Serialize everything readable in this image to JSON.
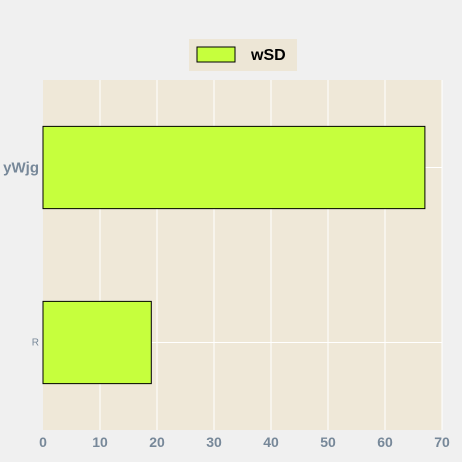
{
  "chart_data": {
    "type": "bar",
    "orientation": "horizontal",
    "categories": [
      "yWjg",
      "R"
    ],
    "series": [
      {
        "name": "wSD",
        "values": [
          67,
          19
        ]
      }
    ],
    "xlim": [
      0,
      70
    ],
    "xticks": [
      0,
      10,
      20,
      30,
      40,
      50,
      60,
      70
    ],
    "grid": true,
    "legend": "top-center",
    "colors": {
      "bar": "#c6ff3d",
      "plot_background": "#efe8d8",
      "page_background": "#f0f0f0",
      "grid": "#ffffff",
      "tick_text": "#778899"
    }
  }
}
